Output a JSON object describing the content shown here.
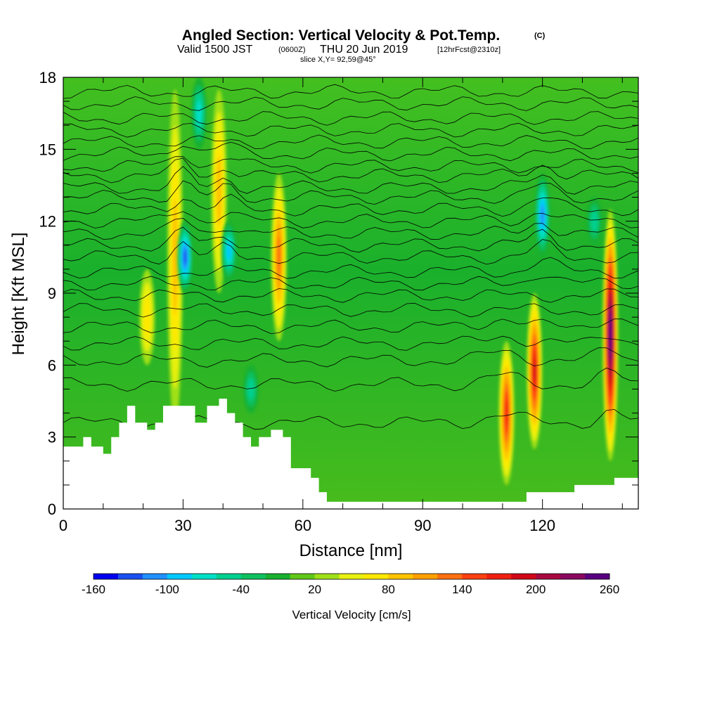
{
  "header": {
    "title": "Angled Section: Vertical Velocity & Pot.Temp.",
    "title_units": "(C)",
    "valid_prefix": "Valid 1500 JST",
    "valid_utc": "(0600Z)",
    "valid_date": "THU 20 Jun 2019",
    "forecast": "[12hrFcst@2310z]",
    "slice": "slice X,Y= 92,59@45°"
  },
  "chart_data": {
    "type": "heatmap",
    "xlabel": "Distance [nm]",
    "ylabel": "Height [Kft MSL]",
    "xlim": [
      0,
      144
    ],
    "ylim": [
      0,
      18
    ],
    "x_ticks": [
      "0",
      "30",
      "60",
      "90",
      "120"
    ],
    "y_ticks": [
      "0",
      "3",
      "6",
      "9",
      "12",
      "15",
      "18"
    ],
    "colorbar": {
      "title": "Vertical Velocity [cm/s]",
      "range": [
        -160,
        260
      ],
      "step": 20,
      "tick_labels": [
        "-160",
        "-100",
        "-40",
        "20",
        "80",
        "140",
        "200",
        "260"
      ],
      "colors": [
        "#0000ee",
        "#1a50f0",
        "#2090ff",
        "#00c8ff",
        "#00e0c8",
        "#00d090",
        "#10c060",
        "#18b030",
        "#60c818",
        "#a0e018",
        "#e8f010",
        "#ffe800",
        "#ffc400",
        "#ffa000",
        "#ff7010",
        "#ff4010",
        "#f02010",
        "#d00818",
        "#a80840",
        "#880860",
        "#580080"
      ]
    },
    "terrain_top_kft": [
      {
        "x": 0,
        "h": 2.6
      },
      {
        "x": 5,
        "h": 3.0
      },
      {
        "x": 7,
        "h": 2.6
      },
      {
        "x": 10,
        "h": 2.3
      },
      {
        "x": 12,
        "h": 3.0
      },
      {
        "x": 14,
        "h": 3.6
      },
      {
        "x": 16,
        "h": 4.3
      },
      {
        "x": 18,
        "h": 3.6
      },
      {
        "x": 21,
        "h": 3.3
      },
      {
        "x": 23,
        "h": 3.6
      },
      {
        "x": 25,
        "h": 4.3
      },
      {
        "x": 31,
        "h": 4.3
      },
      {
        "x": 33,
        "h": 3.6
      },
      {
        "x": 36,
        "h": 4.3
      },
      {
        "x": 39,
        "h": 4.6
      },
      {
        "x": 41,
        "h": 4.0
      },
      {
        "x": 43,
        "h": 3.6
      },
      {
        "x": 45,
        "h": 3.0
      },
      {
        "x": 47,
        "h": 2.6
      },
      {
        "x": 49,
        "h": 3.0
      },
      {
        "x": 52,
        "h": 3.3
      },
      {
        "x": 55,
        "h": 3.0
      },
      {
        "x": 57,
        "h": 1.7
      },
      {
        "x": 62,
        "h": 1.3
      },
      {
        "x": 64,
        "h": 0.7
      },
      {
        "x": 66,
        "h": 0.3
      },
      {
        "x": 114,
        "h": 0.3
      },
      {
        "x": 116,
        "h": 0.7
      },
      {
        "x": 128,
        "h": 1.0
      },
      {
        "x": 132,
        "h": 1.0
      },
      {
        "x": 138,
        "h": 1.3
      },
      {
        "x": 144,
        "h": 1.3
      }
    ],
    "updrafts": [
      {
        "x": 111,
        "y0": 1.0,
        "y1": 7.0,
        "peak": 160
      },
      {
        "x": 118,
        "y0": 2.5,
        "y1": 9.0,
        "peak": 170
      },
      {
        "x": 137,
        "y0": 2.0,
        "y1": 12.5,
        "peak": 250
      },
      {
        "x": 54,
        "y0": 7.0,
        "y1": 14.0,
        "peak": 110
      },
      {
        "x": 28,
        "y0": 3.5,
        "y1": 17.5,
        "peak": 70
      },
      {
        "x": 39,
        "y0": 9.0,
        "y1": 17.5,
        "peak": 70
      },
      {
        "x": 21,
        "y0": 6.0,
        "y1": 10.0,
        "peak": 60
      }
    ],
    "downdrafts": [
      {
        "x": 30.5,
        "y0": 9.0,
        "y1": 12.0,
        "peak": -140
      },
      {
        "x": 41.5,
        "y0": 9.5,
        "y1": 12.0,
        "peak": -100
      },
      {
        "x": 120,
        "y0": 10.5,
        "y1": 14.0,
        "peak": -120
      },
      {
        "x": 34,
        "y0": 15.0,
        "y1": 18.0,
        "peak": -80
      },
      {
        "x": 47,
        "y0": 4.0,
        "y1": 6.0,
        "peak": -60
      },
      {
        "x": 133,
        "y0": 11.0,
        "y1": 13.0,
        "peak": -60
      }
    ],
    "theta_contours_kft": [
      3.6,
      5.2,
      6.2,
      6.9,
      7.6,
      8.3,
      8.9,
      9.4,
      9.9,
      10.5,
      11.0,
      11.5,
      12.0,
      12.5,
      13.0,
      13.4,
      13.9,
      14.3,
      14.8,
      15.3,
      15.8,
      16.3,
      16.9,
      17.4
    ]
  }
}
